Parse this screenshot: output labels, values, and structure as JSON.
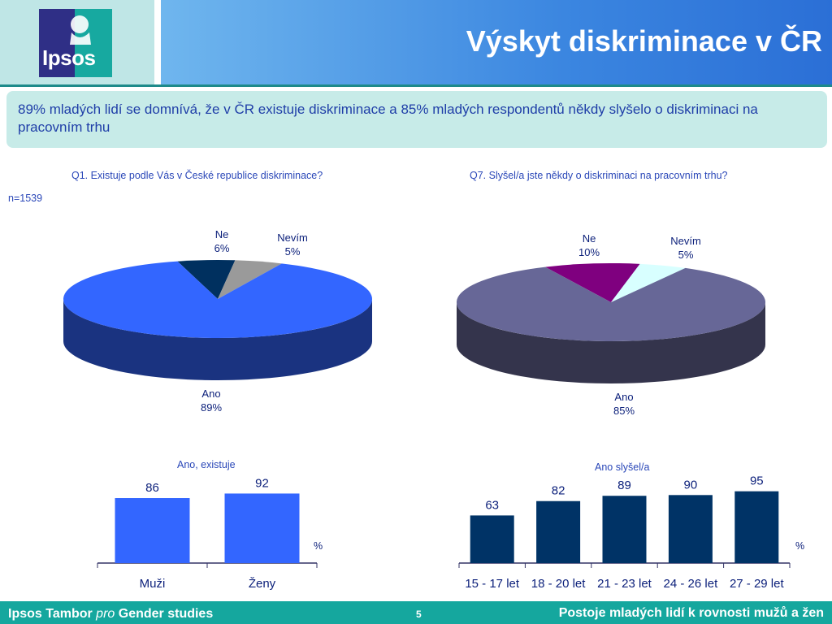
{
  "header": {
    "title": "Výskyt diskriminace v ČR",
    "logo_text": "Ipsos"
  },
  "callout": "89% mladých lidí se domnívá, že v ČR existuje diskriminace a 85% mladých respondentů někdy slyšelo o diskriminaci na pracovním trhu",
  "sample": "n=1539",
  "footer": {
    "brand": "Ipsos Tambor",
    "pro": "pro",
    "series": "Gender studies",
    "page": "5",
    "right": "Postoje mladých lidí k rovnosti mužů a žen"
  },
  "colors": {
    "pie1_ano": "#3366ff",
    "pie1_ne": "#00305f",
    "pie1_nevim": "#9a9a9a",
    "pie2_ano": "#676797",
    "pie2_ne": "#7f007f",
    "pie2_nevim": "#d8ffff",
    "bar_left": "#3366ff",
    "bar_right": "#003366"
  },
  "chart_data": [
    {
      "type": "pie",
      "title": "Q1. Existuje podle Vás v České republice diskriminace?",
      "slices": [
        {
          "label": "Ano",
          "value": 89,
          "display": "89%"
        },
        {
          "label": "Ne",
          "value": 6,
          "display": "6%"
        },
        {
          "label": "Nevím",
          "value": 5,
          "display": "5%"
        }
      ]
    },
    {
      "type": "pie",
      "title": "Q7. Slyšel/a jste někdy o diskriminaci na pracovním trhu?",
      "slices": [
        {
          "label": "Ano",
          "value": 85,
          "display": "85%"
        },
        {
          "label": "Ne",
          "value": 10,
          "display": "10%"
        },
        {
          "label": "Nevím",
          "value": 5,
          "display": "5%"
        }
      ]
    },
    {
      "type": "bar",
      "title": "Ano, existuje",
      "unit": "%",
      "categories": [
        "Muži",
        "Ženy"
      ],
      "values": [
        86,
        92
      ]
    },
    {
      "type": "bar",
      "title": "Ano slyšel/a",
      "unit": "%",
      "categories": [
        "15 - 17 let",
        "18 - 20 let",
        "21 - 23 let",
        "24 - 26 let",
        "27 - 29 let"
      ],
      "values": [
        63,
        82,
        89,
        90,
        95
      ]
    }
  ]
}
